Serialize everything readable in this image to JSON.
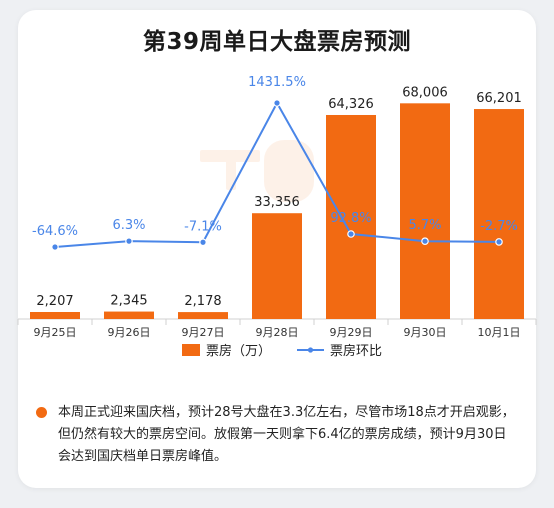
{
  "chart_data": {
    "type": "bar",
    "title": "第39周单日大盘票房预测",
    "categories": [
      "9月25日",
      "9月26日",
      "9月27日",
      "9月28日",
      "9月29日",
      "9月30日",
      "10月1日"
    ],
    "series": [
      {
        "name": "票房（万）",
        "type": "bar",
        "values": [
          2207,
          2345,
          2178,
          33356,
          64326,
          68006,
          66201
        ],
        "labels": [
          "2,207",
          "2,345",
          "2,178",
          "33,356",
          "64,326",
          "68,006",
          "66,201"
        ],
        "color": "#f26a12"
      },
      {
        "name": "票房环比",
        "type": "line",
        "values": [
          -64.6,
          6.3,
          -7.1,
          1431.5,
          92.8,
          5.7,
          -2.7
        ],
        "labels": [
          "-64.6%",
          "6.3%",
          "-7.1%",
          "1431.5%",
          "92.8%",
          "5.7%",
          "-2.7%"
        ],
        "color": "#4a86e8"
      }
    ],
    "legend_position": "bottom",
    "grid": false
  },
  "note": {
    "text": "本周正式迎来国庆档，预计28号大盘在3.3亿左右，尽管市场18点才开启观影，但仍然有较大的票房空间。放假第一天则拿下6.4亿的票房成绩，预计9月30日会达到国庆档单日票房峰值。"
  }
}
